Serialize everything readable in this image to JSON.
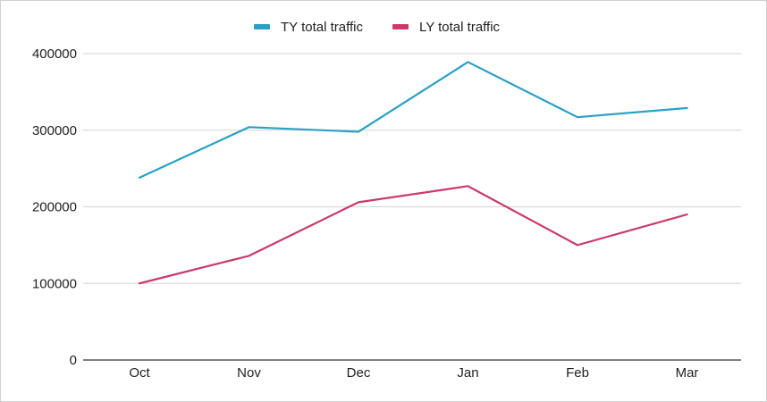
{
  "chart_data": {
    "type": "line",
    "title": "",
    "xlabel": "",
    "ylabel": "",
    "categories": [
      "Oct",
      "Nov",
      "Dec",
      "Jan",
      "Feb",
      "Mar"
    ],
    "series": [
      {
        "name": "TY total traffic",
        "color": "#2aa0c4",
        "values": [
          238000,
          304000,
          298000,
          389000,
          317000,
          329000
        ]
      },
      {
        "name": "LY total traffic",
        "color": "#cc3b68",
        "values": [
          100000,
          136000,
          206000,
          227000,
          150000,
          190000
        ]
      }
    ],
    "y_ticks": [
      "0",
      "100000",
      "200000",
      "300000",
      "400000"
    ],
    "ylim": [
      0,
      400000
    ],
    "grid": true,
    "legend_position": "top-center"
  }
}
